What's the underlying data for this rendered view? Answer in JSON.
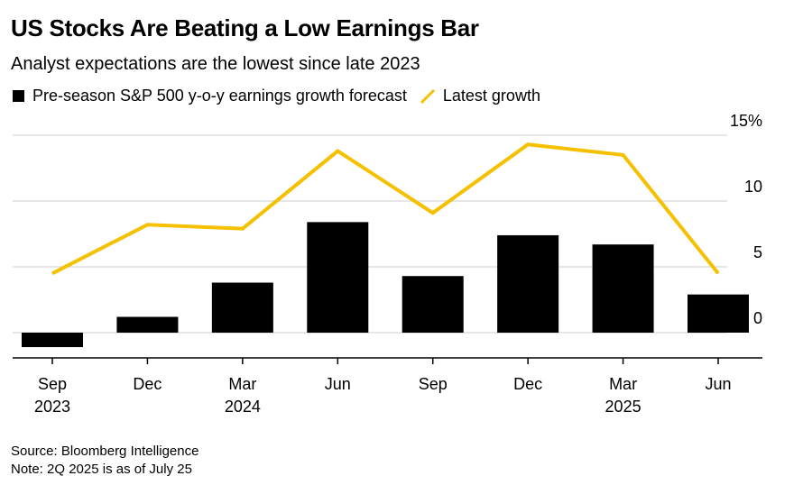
{
  "title": "US Stocks Are Beating a Low Earnings Bar",
  "subtitle": "Analyst expectations are the lowest since late 2023",
  "legend": {
    "bar_label": "Pre-season S&P 500 y-o-y earnings growth forecast",
    "line_label": "Latest growth"
  },
  "footer": {
    "source": "Source: Bloomberg Intelligence",
    "note": "Note: 2Q 2025 is as of July 25"
  },
  "colors": {
    "bar": "#000000",
    "line": "#f5c000",
    "grid": "#dddddd",
    "axis": "#000000"
  },
  "chart_data": {
    "type": "bar+line",
    "categories": [
      "Sep 2023",
      "Dec 2023",
      "Mar 2024",
      "Jun 2024",
      "Sep 2024",
      "Dec 2024",
      "Mar 2025",
      "Jun 2025"
    ],
    "x_tick_labels": [
      {
        "top": "Sep",
        "bottom": "2023"
      },
      {
        "top": "Dec",
        "bottom": ""
      },
      {
        "top": "Mar",
        "bottom": "2024"
      },
      {
        "top": "Jun",
        "bottom": ""
      },
      {
        "top": "Sep",
        "bottom": ""
      },
      {
        "top": "Dec",
        "bottom": ""
      },
      {
        "top": "Mar",
        "bottom": "2025"
      },
      {
        "top": "Jun",
        "bottom": ""
      }
    ],
    "series": [
      {
        "name": "Pre-season S&P 500 y-o-y earnings growth forecast",
        "kind": "bar",
        "values": [
          -1.1,
          1.2,
          3.8,
          8.4,
          4.3,
          7.4,
          6.7,
          2.9
        ]
      },
      {
        "name": "Latest growth",
        "kind": "line",
        "values": [
          4.5,
          8.2,
          7.9,
          13.8,
          9.1,
          14.3,
          13.5,
          4.5
        ]
      }
    ],
    "ylim": [
      -2,
      15
    ],
    "yticks": [
      0,
      5,
      10,
      15
    ],
    "ytick_labels": [
      "0",
      "5",
      "10",
      "15%"
    ],
    "ylabel": "",
    "xlabel": "",
    "grid": true,
    "legend_position": "top-left"
  }
}
